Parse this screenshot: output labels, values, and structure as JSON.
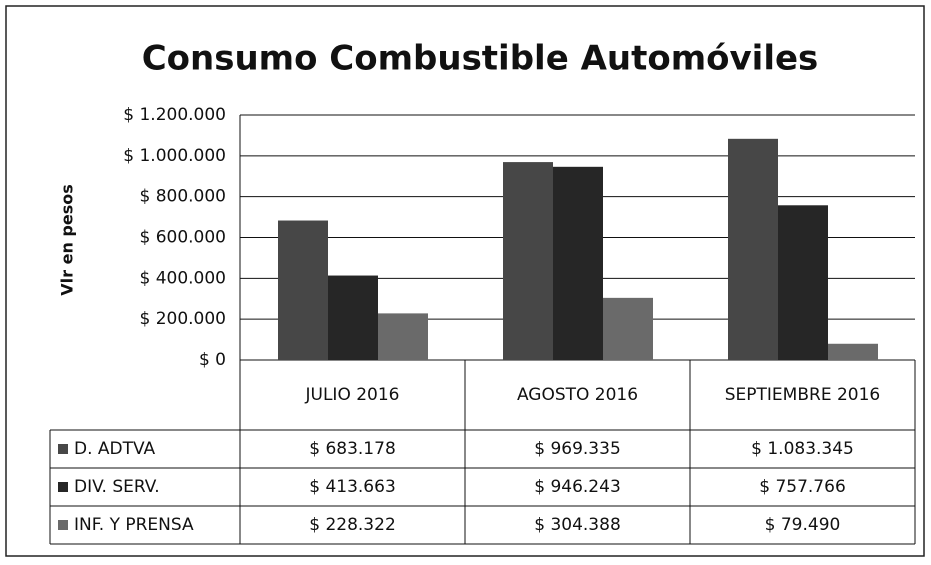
{
  "chart_data": {
    "type": "bar",
    "title": "Consumo Combustible Automóviles",
    "y_label": "Vlr en pesos",
    "categories": [
      "JULIO 2016",
      "AGOSTO 2016",
      "SEPTIEMBRE 2016"
    ],
    "series": [
      {
        "name": "D. ADTVA",
        "color": "#474747",
        "values": [
          683178,
          969335,
          1083345
        ],
        "value_labels": [
          "$ 683.178",
          "$ 969.335",
          "$ 1.083.345"
        ]
      },
      {
        "name": "DIV. SERV.",
        "color": "#262626",
        "values": [
          413663,
          946243,
          757766
        ],
        "value_labels": [
          "$ 413.663",
          "$ 946.243",
          "$ 757.766"
        ]
      },
      {
        "name": "INF. Y PRENSA",
        "color": "#6a6a6a",
        "values": [
          228322,
          304388,
          79490
        ],
        "value_labels": [
          "$ 228.322",
          "$ 304.388",
          "$ 79.490"
        ]
      }
    ],
    "ylim": [
      0,
      1200000
    ],
    "yticks": [
      {
        "value": 0,
        "label": "$ 0"
      },
      {
        "value": 200000,
        "label": "$ 200.000"
      },
      {
        "value": 400000,
        "label": "$ 400.000"
      },
      {
        "value": 600000,
        "label": "$ 600.000"
      },
      {
        "value": 800000,
        "label": "$ 800.000"
      },
      {
        "value": 1000000,
        "label": "$ 1.000.000"
      },
      {
        "value": 1200000,
        "label": "$ 1.200.000"
      }
    ],
    "grid": true
  }
}
